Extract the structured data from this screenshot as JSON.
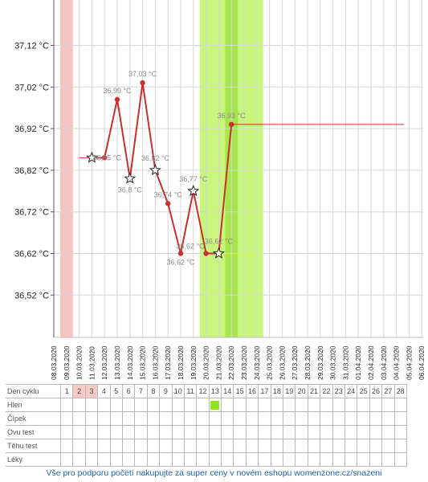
{
  "chart_data": {
    "type": "line",
    "y_unit": "°C",
    "ylim": [
      36.42,
      37.22
    ],
    "y_ticks": [
      "36,52 °C",
      "36,62 °C",
      "36,72 °C",
      "36,82 °C",
      "36,92 °C",
      "37,02 °C",
      "37,12 °C"
    ],
    "y_tick_values": [
      36.52,
      36.62,
      36.72,
      36.82,
      36.92,
      37.02,
      37.12
    ],
    "dates": [
      "08.03.2020",
      "09.03.2020",
      "10.03.2020",
      "11.03.2020",
      "12.03.2020",
      "13.03.2020",
      "14.03.2020",
      "15.03.2020",
      "16.03.2020",
      "17.03.2020",
      "18.03.2020",
      "19.03.2020",
      "20.03.2020",
      "21.03.2020",
      "22.03.2020",
      "23.03.2020",
      "24.03.2020",
      "25.03.2020",
      "26.03.2020",
      "27.03.2020",
      "28.03.2020",
      "29.03.2020",
      "30.03.2020",
      "31.03.2020",
      "01.04.2020",
      "02.04.2020",
      "03.04.2020",
      "04.04.2020",
      "05.04.2020",
      "06.04.2020"
    ],
    "temps": [
      {
        "date": "11.03.2020",
        "value": 36.85,
        "label": "",
        "marker": "star"
      },
      {
        "date": "12.03.2020",
        "value": 36.85,
        "label": "36,85 °C",
        "marker": "dot"
      },
      {
        "date": "13.03.2020",
        "value": 36.99,
        "label": "36,99 °C",
        "marker": "dot"
      },
      {
        "date": "14.03.2020",
        "value": 36.8,
        "label": "36,8 °C",
        "marker": "star"
      },
      {
        "date": "15.03.2020",
        "value": 37.03,
        "label": "37,03 °C",
        "marker": "dot"
      },
      {
        "date": "16.03.2020",
        "value": 36.82,
        "label": "36,82 °C",
        "marker": "star"
      },
      {
        "date": "17.03.2020",
        "value": 36.74,
        "label": "36,74 °C",
        "marker": "dot"
      },
      {
        "date": "18.03.2020",
        "value": 36.62,
        "label": "36,62 °C",
        "marker": "dot"
      },
      {
        "date": "19.03.2020",
        "value": 36.77,
        "label": "36,77 °C",
        "marker": "star"
      },
      {
        "date": "20.03.2020",
        "value": 36.62,
        "label": "36,62 °C",
        "marker": "dot"
      },
      {
        "date": "21.03.2020",
        "value": 36.62,
        "label": "36,62 °C",
        "marker": "star"
      },
      {
        "date": "22.03.2020",
        "value": 36.93,
        "label": "36,93 °C",
        "marker": "dot"
      }
    ],
    "baseline_before": {
      "from": "09.03.2020",
      "to": "11.03.2020",
      "value": 36.85
    },
    "baseline_after": {
      "from": "22.03.2020",
      "to": "05.04.2020",
      "value": 36.93
    },
    "bands": [
      {
        "from": "08.03.2020",
        "to": "09.03.2020",
        "color": "#f7c3c0"
      },
      {
        "from": "19.03.2020",
        "to": "24.03.2020",
        "color": "#c9f57c"
      },
      {
        "from": "21.03.2020",
        "to": "22.03.2020",
        "color": "#a6e64c"
      }
    ],
    "line_color": "#c7302e",
    "grid": true
  },
  "table": {
    "cycle_days": [
      "1",
      "2",
      "3",
      "4",
      "5",
      "6",
      "7",
      "8",
      "9",
      "10",
      "11",
      "12",
      "13",
      "14",
      "15",
      "16",
      "17",
      "18",
      "19",
      "20",
      "21",
      "22",
      "23",
      "24",
      "25",
      "26",
      "27",
      "28"
    ],
    "rows": [
      "Den cyklu",
      "Hlen",
      "Čípek",
      "Ovu test",
      "Těhu test",
      "Léky"
    ],
    "pink_days": [
      2,
      3
    ],
    "hlen_marked_day": 13,
    "hlen_color": "#8de619"
  },
  "footer": {
    "text": "Vše pro podporu početí nakupujte za super ceny v novém eshopu womenzone.cz/snazeni"
  }
}
